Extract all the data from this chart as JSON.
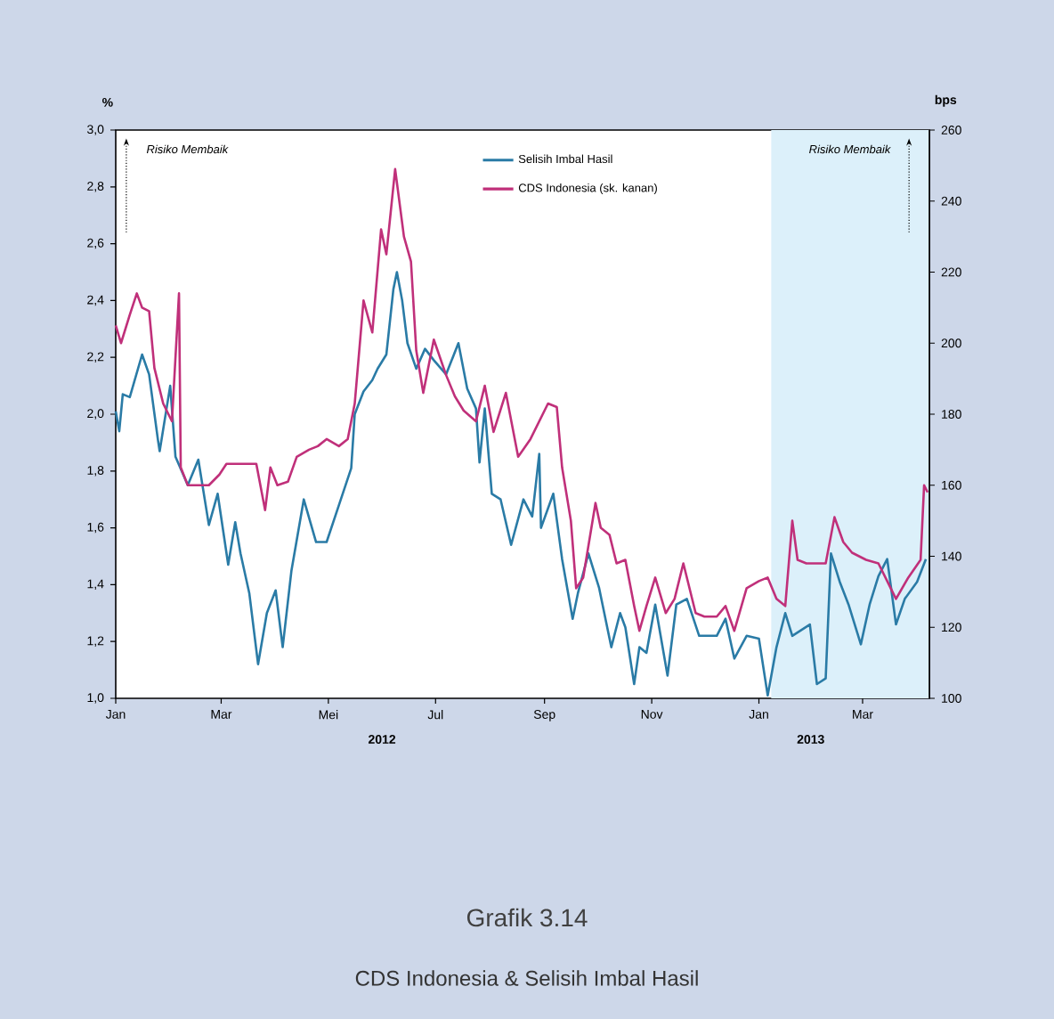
{
  "chart_data": {
    "type": "line",
    "title": "Grafik 3.14",
    "subtitle": "CDS Indonesia & Selisih Imbal Hasil",
    "ylabel": "%",
    "y2label": "bps",
    "annotations": [
      "Risiko Membaik",
      "Risiko Membaik",
      "2012",
      "2013"
    ],
    "xlim": [
      "2012-01-01",
      "2013-04-08"
    ],
    "xticks": [
      {
        "value": "2012-01-01",
        "label": "Jan"
      },
      {
        "value": "2012-03-01",
        "label": "Mar"
      },
      {
        "value": "2012-05-01",
        "label": "Mei"
      },
      {
        "value": "2012-07-01",
        "label": "Jul"
      },
      {
        "value": "2012-09-01",
        "label": "Sep"
      },
      {
        "value": "2012-11-01",
        "label": "Nov"
      },
      {
        "value": "2013-01-01",
        "label": "Jan"
      },
      {
        "value": "2013-03-01",
        "label": "Mar"
      }
    ],
    "ylim": [
      1.0,
      3.0
    ],
    "yticks": [
      {
        "value": 1.0,
        "label": "1,0"
      },
      {
        "value": 1.2,
        "label": "1,2"
      },
      {
        "value": 1.4,
        "label": "1,4"
      },
      {
        "value": 1.6,
        "label": "1,6"
      },
      {
        "value": 1.8,
        "label": "1,8"
      },
      {
        "value": 2.0,
        "label": "2,0"
      },
      {
        "value": 2.2,
        "label": "2,2"
      },
      {
        "value": 2.4,
        "label": "2,4"
      },
      {
        "value": 2.6,
        "label": "2,6"
      },
      {
        "value": 2.8,
        "label": "2,8"
      },
      {
        "value": 3.0,
        "label": "3,0"
      }
    ],
    "y2lim": [
      100,
      260
    ],
    "y2ticks": [
      100,
      120,
      140,
      160,
      180,
      200,
      220,
      240,
      260
    ],
    "bands": [
      {
        "axis": "x",
        "from": "2013-01-08",
        "to": "2013-04-08",
        "label": null,
        "color": "#dcf0fa"
      }
    ],
    "legend": "top",
    "grid": false,
    "marker": "none",
    "line_style": "solid",
    "series": [
      {
        "name": "Selisih Imbal Hasil",
        "color": "#2a7ba6",
        "x": [
          "2012-01-01",
          "2012-01-03",
          "2012-01-05",
          "2012-01-09",
          "2012-01-16",
          "2012-01-20",
          "2012-01-25",
          "2012-01-26",
          "2012-02-01",
          "2012-02-04",
          "2012-02-11",
          "2012-02-17",
          "2012-02-23",
          "2012-02-28",
          "2012-03-05",
          "2012-03-09",
          "2012-03-12",
          "2012-03-17",
          "2012-03-22",
          "2012-03-27",
          "2012-04-01",
          "2012-04-05",
          "2012-04-10",
          "2012-04-17",
          "2012-04-24",
          "2012-04-30",
          "2012-05-07",
          "2012-05-14",
          "2012-05-16",
          "2012-05-21",
          "2012-05-26",
          "2012-05-29",
          "2012-06-03",
          "2012-06-07",
          "2012-06-09",
          "2012-06-12",
          "2012-06-15",
          "2012-06-20",
          "2012-06-25",
          "2012-06-30",
          "2012-07-07",
          "2012-07-14",
          "2012-07-19",
          "2012-07-24",
          "2012-07-26",
          "2012-07-29",
          "2012-08-02",
          "2012-08-07",
          "2012-08-13",
          "2012-08-20",
          "2012-08-25",
          "2012-08-29",
          "2012-08-30",
          "2012-09-06",
          "2012-09-11",
          "2012-09-17",
          "2012-09-20",
          "2012-09-26",
          "2012-10-02",
          "2012-10-09",
          "2012-10-14",
          "2012-10-17",
          "2012-10-22",
          "2012-10-25",
          "2012-10-29",
          "2012-11-03",
          "2012-11-10",
          "2012-11-15",
          "2012-11-21",
          "2012-11-28",
          "2012-12-08",
          "2012-12-13",
          "2012-12-18",
          "2012-12-25",
          "2013-01-01",
          "2013-01-06",
          "2013-01-11",
          "2013-01-16",
          "2013-01-20",
          "2013-01-30",
          "2013-02-03",
          "2013-02-08",
          "2013-02-11",
          "2013-02-16",
          "2013-02-21",
          "2013-02-28",
          "2013-03-05",
          "2013-03-10",
          "2013-03-15",
          "2013-03-20",
          "2013-03-25",
          "2013-04-01",
          "2013-04-06"
        ],
        "values": [
          2.01,
          1.94,
          2.07,
          2.06,
          2.21,
          2.14,
          1.91,
          1.87,
          2.1,
          1.85,
          1.75,
          1.84,
          1.61,
          1.72,
          1.47,
          1.62,
          1.51,
          1.37,
          1.12,
          1.3,
          1.38,
          1.18,
          1.45,
          1.7,
          1.55,
          1.55,
          1.68,
          1.81,
          2.0,
          2.08,
          2.12,
          2.16,
          2.21,
          2.44,
          2.5,
          2.4,
          2.25,
          2.16,
          2.23,
          2.19,
          2.14,
          2.25,
          2.09,
          2.02,
          1.83,
          2.02,
          1.72,
          1.7,
          1.54,
          1.7,
          1.64,
          1.86,
          1.6,
          1.72,
          1.49,
          1.28,
          1.37,
          1.51,
          1.39,
          1.18,
          1.3,
          1.25,
          1.05,
          1.18,
          1.16,
          1.33,
          1.08,
          1.33,
          1.35,
          1.22,
          1.22,
          1.28,
          1.14,
          1.22,
          1.21,
          1.01,
          1.18,
          1.3,
          1.22,
          1.26,
          1.05,
          1.07,
          1.51,
          1.41,
          1.33,
          1.19,
          1.33,
          1.43,
          1.49,
          1.26,
          1.35,
          1.41,
          1.49
        ]
      },
      {
        "name": "CDS Indonesia (sk. kanan)",
        "color": "#c0307a",
        "axis": "y2",
        "x": [
          "2012-01-01",
          "2012-01-04",
          "2012-01-09",
          "2012-01-13",
          "2012-01-16",
          "2012-01-20",
          "2012-01-23",
          "2012-01-28",
          "2012-02-02",
          "2012-02-06",
          "2012-02-07",
          "2012-02-11",
          "2012-02-23",
          "2012-02-29",
          "2012-03-04",
          "2012-03-21",
          "2012-03-26",
          "2012-03-29",
          "2012-04-02",
          "2012-04-08",
          "2012-04-13",
          "2012-04-20",
          "2012-04-25",
          "2012-04-30",
          "2012-05-07",
          "2012-05-12",
          "2012-05-16",
          "2012-05-21",
          "2012-05-26",
          "2012-05-31",
          "2012-06-03",
          "2012-06-08",
          "2012-06-13",
          "2012-06-17",
          "2012-06-20",
          "2012-06-24",
          "2012-06-30",
          "2012-07-07",
          "2012-07-12",
          "2012-07-17",
          "2012-07-24",
          "2012-07-29",
          "2012-08-03",
          "2012-08-10",
          "2012-08-17",
          "2012-08-24",
          "2012-09-03",
          "2012-09-08",
          "2012-09-11",
          "2012-09-16",
          "2012-09-19",
          "2012-09-23",
          "2012-09-30",
          "2012-10-03",
          "2012-10-08",
          "2012-10-12",
          "2012-10-17",
          "2012-10-22",
          "2012-10-25",
          "2012-10-29",
          "2012-11-03",
          "2012-11-09",
          "2012-11-14",
          "2012-11-19",
          "2012-11-26",
          "2012-12-01",
          "2012-12-08",
          "2012-12-13",
          "2012-12-18",
          "2012-12-25",
          "2013-01-01",
          "2013-01-06",
          "2013-01-11",
          "2013-01-16",
          "2013-01-20",
          "2013-01-23",
          "2013-01-28",
          "2013-02-03",
          "2013-02-08",
          "2013-02-13",
          "2013-02-18",
          "2013-02-23",
          "2013-03-03",
          "2013-03-10",
          "2013-03-15",
          "2013-03-20",
          "2013-03-27",
          "2013-04-03",
          "2013-04-05",
          "2013-04-07"
        ],
        "values": [
          205,
          200,
          208,
          214,
          210,
          209,
          193,
          183,
          178,
          214,
          165,
          160,
          160,
          163,
          166,
          166,
          153,
          165,
          160,
          161,
          168,
          170,
          171,
          173,
          171,
          173,
          183,
          212,
          203,
          232,
          225,
          249,
          230,
          223,
          198,
          186,
          201,
          191,
          185,
          181,
          178,
          188,
          175,
          186,
          168,
          173,
          183,
          182,
          165,
          150,
          131,
          134,
          155,
          148,
          146,
          138,
          139,
          126,
          119,
          126,
          134,
          124,
          128,
          138,
          124,
          123,
          123,
          126,
          119,
          131,
          133,
          134,
          128,
          126,
          150,
          139,
          138,
          138,
          138,
          151,
          144,
          141,
          139,
          138,
          133,
          128,
          134,
          139,
          160,
          158
        ]
      }
    ]
  }
}
